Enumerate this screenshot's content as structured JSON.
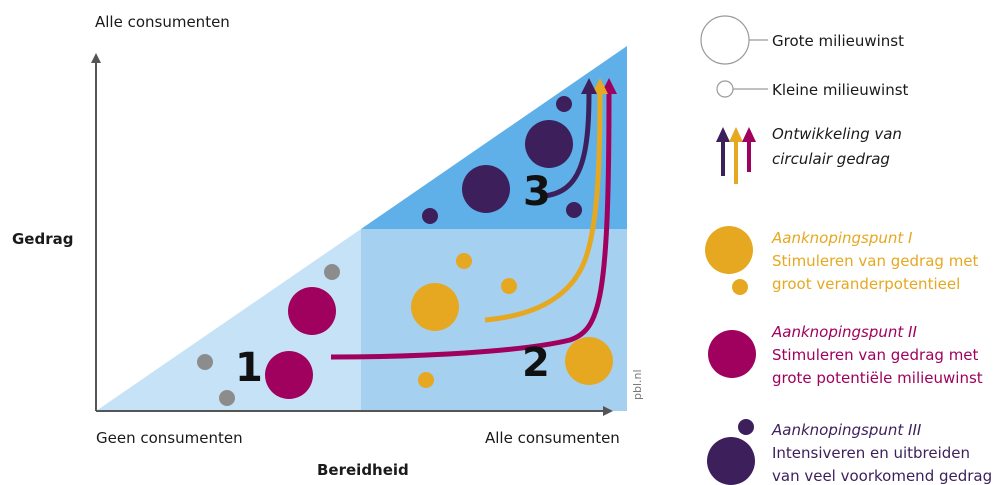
{
  "axes": {
    "y_top_label": "Alle consumenten",
    "y_title": "Gedrag",
    "x_left_label": "Geen consumenten",
    "x_right_label": "Alle consumenten",
    "x_title": "Bereidheid"
  },
  "zones": [
    "1",
    "2",
    "3"
  ],
  "watermark": "pbl.nl",
  "legend": {
    "large_circle": "Grote milieuwinst",
    "small_circle": "Kleine milieuwinst",
    "development_line1": "Ontwikkeling van",
    "development_line2": "circulair gedrag",
    "point1_title": "Aanknopingspunt I",
    "point1_line1": "Stimuleren van gedrag met",
    "point1_line2": "groot veranderpotentieel",
    "point2_title": "Aanknopingspunt II",
    "point2_line1": "Stimuleren van gedrag met",
    "point2_line2": "grote potentiële milieuwinst",
    "point3_title": "Aanknopingspunt III",
    "point3_line1": "Intensiveren en uitbreiden",
    "point3_line2": "van veel voorkomend gedrag"
  },
  "colors": {
    "zone1": "#c6e2f6",
    "zone2": "#a6d0f0",
    "zone3": "#5fb0e8",
    "grey": "#8c8c8c",
    "orange": "#e6a820",
    "magenta": "#a0005e",
    "purple": "#3d1f5c",
    "axis": "#555555"
  }
}
